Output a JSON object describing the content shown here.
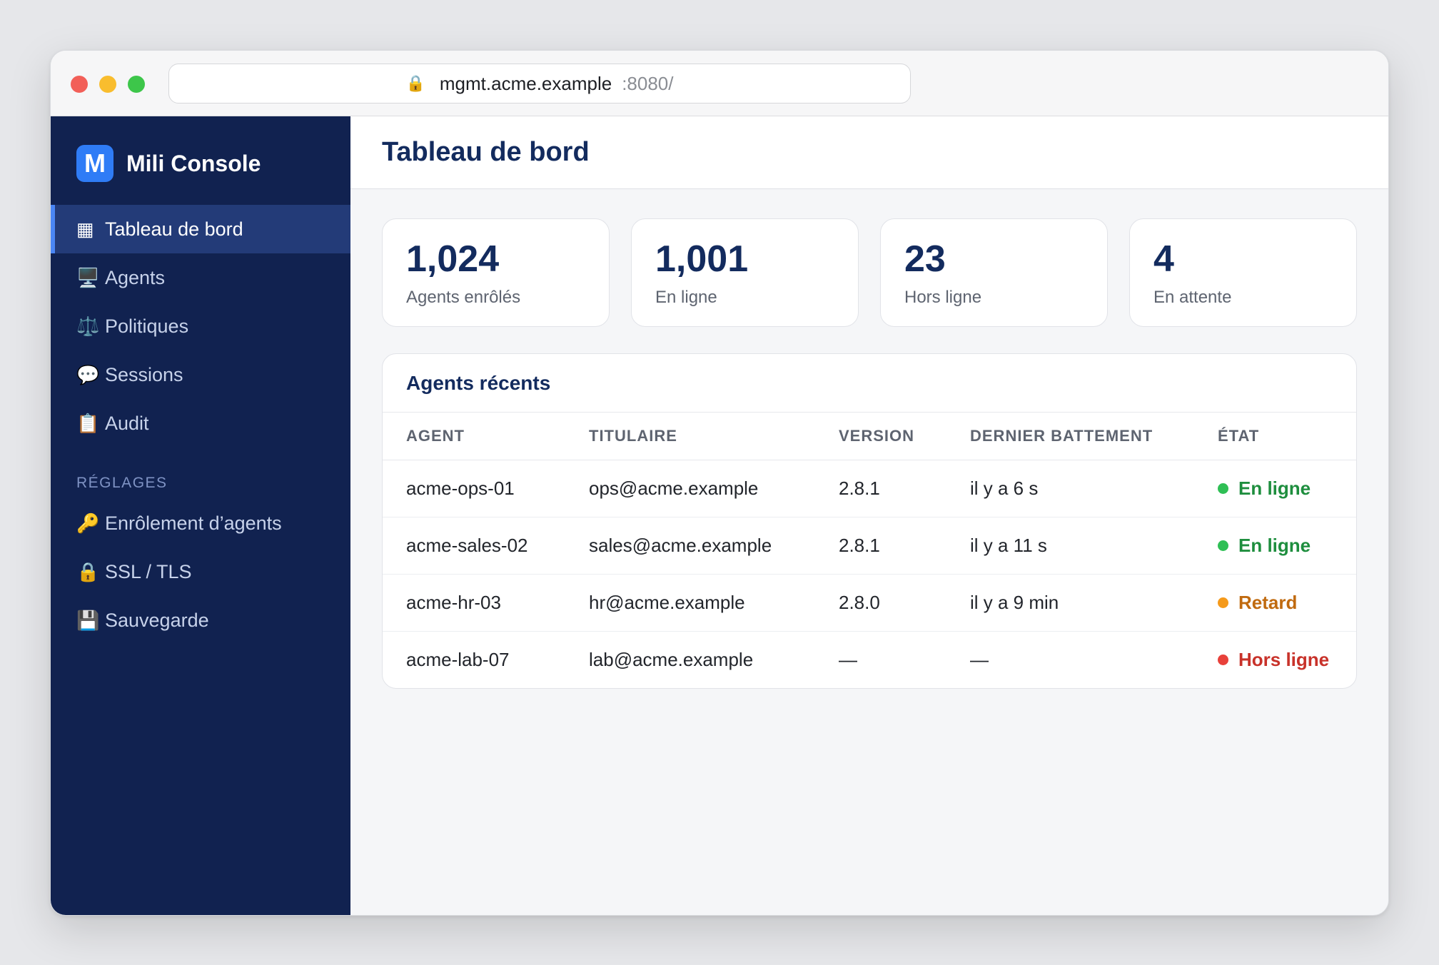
{
  "browser": {
    "url_host": "mgmt.acme.example",
    "url_port": ":8080/",
    "lock_icon": "🔒"
  },
  "brand": {
    "logo_letter": "M",
    "name": "Mili Console"
  },
  "sidebar": {
    "items": [
      {
        "icon": "▦",
        "label": "Tableau de bord",
        "active": true
      },
      {
        "icon": "🖥️",
        "label": "Agents"
      },
      {
        "icon": "⚖️",
        "label": "Politiques"
      },
      {
        "icon": "💬",
        "label": "Sessions"
      },
      {
        "icon": "📋",
        "label": "Audit"
      }
    ],
    "section_label": "RÉGLAGES",
    "settings_items": [
      {
        "icon": "🔑",
        "label": "Enrôlement d’agents"
      },
      {
        "icon": "🔒",
        "label": "SSL / TLS"
      },
      {
        "icon": "💾",
        "label": "Sauvegarde"
      }
    ]
  },
  "header": {
    "title": "Tableau de bord"
  },
  "stats": [
    {
      "value": "1,024",
      "label": "Agents enrôlés"
    },
    {
      "value": "1,001",
      "label": "En ligne"
    },
    {
      "value": "23",
      "label": "Hors ligne"
    },
    {
      "value": "4",
      "label": "En attente"
    }
  ],
  "recent": {
    "title": "Agents récents",
    "columns": [
      "AGENT",
      "TITULAIRE",
      "VERSION",
      "DERNIER BATTEMENT",
      "ÉTAT"
    ],
    "rows": [
      {
        "agent": "acme-ops-01",
        "owner": "ops@acme.example",
        "version": "2.8.1",
        "heartbeat": "il y a 6 s",
        "status": "En ligne",
        "status_color": "#1e8e3e",
        "dot_color": "#2fbf55"
      },
      {
        "agent": "acme-sales-02",
        "owner": "sales@acme.example",
        "version": "2.8.1",
        "heartbeat": "il y a 11 s",
        "status": "En ligne",
        "status_color": "#1e8e3e",
        "dot_color": "#2fbf55"
      },
      {
        "agent": "acme-hr-03",
        "owner": "hr@acme.example",
        "version": "2.8.0",
        "heartbeat": "il y a 9 min",
        "status": "Retard",
        "status_color": "#c06a0f",
        "dot_color": "#f59a1b"
      },
      {
        "agent": "acme-lab-07",
        "owner": "lab@acme.example",
        "version": "—",
        "heartbeat": "—",
        "status": "Hors ligne",
        "status_color": "#c8322a",
        "dot_color": "#e8413a"
      }
    ]
  }
}
